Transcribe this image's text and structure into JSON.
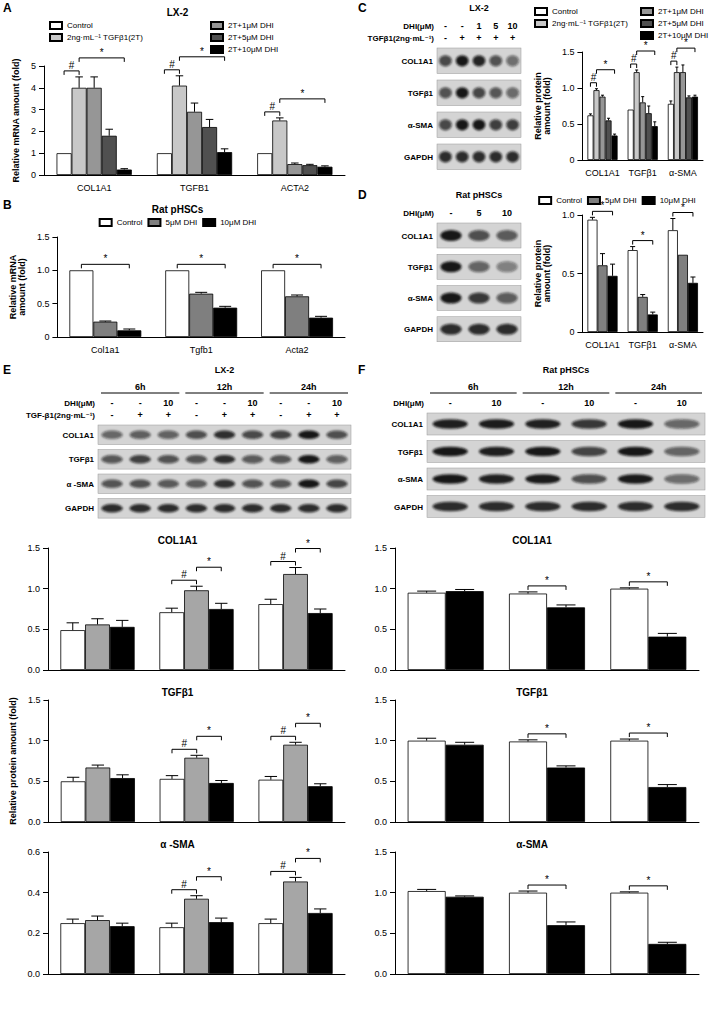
{
  "chart_data": [
    {
      "type": "bar",
      "panel": "A",
      "title": "LX-2",
      "ylabel": "Relative mRNA amount (fold)",
      "legend": "top",
      "categories": [
        "COL1A1",
        "TGFB1",
        "ACTA2"
      ],
      "series": [
        {
          "name": "Control",
          "color": "#ffffff",
          "values": [
            1,
            1,
            1
          ],
          "errors": [
            0,
            0,
            0
          ]
        },
        {
          "name": "2ng·mL⁻¹ TGFβ1(2T)",
          "color": "#c8c8c8",
          "values": [
            4.0,
            4.1,
            2.5
          ],
          "errors": [
            0.5,
            0.45,
            0.12
          ]
        },
        {
          "name": "2T+1μM DHI",
          "color": "#969696",
          "values": [
            4.0,
            2.9,
            0.5
          ],
          "errors": [
            0.5,
            0.4,
            0.05
          ]
        },
        {
          "name": "2T+5μM DHI",
          "color": "#505050",
          "values": [
            1.8,
            2.2,
            0.45
          ],
          "errors": [
            0.3,
            0.35,
            0.04
          ]
        },
        {
          "name": "2T+10μM DHI",
          "color": "#000000",
          "values": [
            0.25,
            1.05,
            0.38
          ],
          "errors": [
            0.04,
            0.15,
            0.04
          ]
        }
      ],
      "annotations": [
        {
          "text": "#",
          "category": 0,
          "from": 0,
          "to": 1
        },
        {
          "text": "*",
          "category": 0,
          "from": 1,
          "to": 4
        },
        {
          "text": "#",
          "category": 1,
          "from": 0,
          "to": 1
        },
        {
          "text": "*",
          "category": 1,
          "from": 1,
          "to": 4
        },
        {
          "text": "#",
          "category": 2,
          "from": 0,
          "to": 1
        },
        {
          "text": "*",
          "category": 2,
          "from": 1,
          "to": 4
        }
      ],
      "ylim": [
        0,
        5
      ],
      "yticks": [
        0,
        1,
        2,
        3,
        4,
        5
      ],
      "grid": false
    },
    {
      "type": "bar",
      "panel": "B",
      "title": "Rat pHSCs",
      "ylabel": "Relative mRNA\namount (fold)",
      "legend": "top",
      "categories": [
        "Col1a1",
        "Tgfb1",
        "Acta2"
      ],
      "series": [
        {
          "name": "Control",
          "color": "#ffffff",
          "values": [
            1,
            1,
            1
          ],
          "errors": [
            0,
            0,
            0
          ]
        },
        {
          "name": "5μM DHI",
          "color": "#7f7f7f",
          "values": [
            0.23,
            0.65,
            0.61
          ],
          "errors": [
            0.01,
            0.02,
            0.02
          ]
        },
        {
          "name": "10μM DHI",
          "color": "#000000",
          "values": [
            0.1,
            0.44,
            0.29
          ],
          "errors": [
            0.02,
            0.02,
            0.02
          ]
        }
      ],
      "annotations": [
        {
          "text": "*",
          "category": 0,
          "from": 0,
          "to": 2
        },
        {
          "text": "*",
          "category": 1,
          "from": 0,
          "to": 2
        },
        {
          "text": "*",
          "category": 2,
          "from": 0,
          "to": 2
        }
      ],
      "ylim": [
        0,
        1.5
      ],
      "yticks": [
        0,
        0.5,
        {
          "value": 1,
          "label": "1.0"
        },
        1.5
      ],
      "grid": false
    },
    {
      "type": "bar",
      "ylabel": "Relative protein\namount (fold)",
      "legend": "top",
      "categories": [
        "COL1A1",
        "TGFβ1",
        "α-SMA"
      ],
      "series": [
        {
          "name": "Control",
          "color": "#ffffff",
          "values": [
            0.62,
            0.7,
            0.78
          ],
          "errors": [
            0.02,
            0,
            0.04
          ]
        },
        {
          "name": "2ng·mL⁻¹ TGFβ1(2T)",
          "color": "#c8c8c8",
          "values": [
            0.97,
            1.22,
            1.22
          ],
          "errors": [
            0.02,
            0.03,
            0.07
          ]
        },
        {
          "name": "2T+1μM DHI",
          "color": "#969696",
          "values": [
            0.88,
            0.8,
            1.22
          ],
          "errors": [
            0.02,
            0.08,
            0.1
          ]
        },
        {
          "name": "2T+5μM DHI",
          "color": "#505050",
          "values": [
            0.55,
            0.65,
            0.87
          ],
          "errors": [
            0.03,
            0.1,
            0.02
          ]
        },
        {
          "name": "2T+10μM DHI",
          "color": "#000000",
          "values": [
            0.34,
            0.47,
            0.88
          ],
          "errors": [
            0.02,
            0.06,
            0.02
          ]
        }
      ],
      "annotations": [
        {
          "text": "#",
          "category": 0,
          "from": 0,
          "to": 1
        },
        {
          "text": "*",
          "category": 0,
          "from": 1,
          "to": 4
        },
        {
          "text": "#",
          "category": 1,
          "from": 0,
          "to": 1
        },
        {
          "text": "*",
          "category": 1,
          "from": 1,
          "to": 4
        },
        {
          "text": "#",
          "category": 2,
          "from": 0,
          "to": 1
        },
        {
          "text": "*",
          "category": 2,
          "from": 1,
          "to": 4
        }
      ],
      "ylim": [
        0,
        1.5
      ],
      "yticks": [
        0,
        0.5,
        {
          "value": 1,
          "label": "1.0"
        },
        1.5
      ],
      "grid": false
    },
    {
      "type": "bar",
      "ylabel": "Relative protein\namount (fold)",
      "legend": "top",
      "categories": [
        "COL1A1",
        "TGFβ1",
        "α-SMA"
      ],
      "series": [
        {
          "name": "Control",
          "color": "#ffffff",
          "values": [
            0.96,
            0.7,
            0.87
          ],
          "errors": [
            0.02,
            0.03,
            0.1
          ]
        },
        {
          "name": "5μM DHI",
          "color": "#7f7f7f",
          "values": [
            0.57,
            0.3,
            0.66
          ],
          "errors": [
            0.1,
            0.02,
            0
          ]
        },
        {
          "name": "10μM DHI",
          "color": "#000000",
          "values": [
            0.48,
            0.15,
            0.42
          ],
          "errors": [
            0.1,
            0.02,
            0.05
          ]
        }
      ],
      "annotations": [
        {
          "text": "*",
          "category": 0,
          "from": 0,
          "to": 2
        },
        {
          "text": "*",
          "category": 1,
          "from": 0,
          "to": 2
        },
        {
          "text": "*",
          "category": 2,
          "from": 0,
          "to": 2
        }
      ],
      "ylim": [
        0,
        1
      ],
      "yticks": [
        0,
        0.5,
        {
          "value": 1,
          "label": "1.0"
        }
      ],
      "grid": false
    },
    {
      "type": "bar",
      "title": "COL1A1",
      "tick_labels": "y",
      "categories": [
        null,
        null,
        null
      ],
      "series": [
        {
          "color": "#ffffff",
          "values": [
            0.49,
            0.71,
            0.81
          ],
          "errors": [
            0.09,
            0.05,
            0.06
          ]
        },
        {
          "color": "#a6a6a6",
          "values": [
            0.56,
            0.98,
            1.18
          ],
          "errors": [
            0.07,
            0.05,
            0.08
          ]
        },
        {
          "color": "#000000",
          "values": [
            0.53,
            0.75,
            0.7
          ],
          "errors": [
            0.08,
            0.07,
            0.05
          ]
        }
      ],
      "annotations": [
        {
          "text": "#",
          "category": 1,
          "from": 0,
          "to": 1
        },
        {
          "text": "*",
          "category": 1,
          "from": 1,
          "to": 2
        },
        {
          "text": "#",
          "category": 2,
          "from": 0,
          "to": 1
        },
        {
          "text": "*",
          "category": 2,
          "from": 1,
          "to": 2
        }
      ],
      "ylim": [
        0,
        1.5
      ],
      "yticks": [
        {
          "value": 0,
          "label": "0.0"
        },
        0.5,
        {
          "value": 1,
          "label": "1.0"
        },
        1.5
      ],
      "grid": false
    },
    {
      "type": "bar",
      "title": "TGFβ1",
      "ylabel": "Relative protein amount (fold)",
      "tick_labels": "y",
      "categories": [
        null,
        null,
        null
      ],
      "series": [
        {
          "color": "#ffffff",
          "values": [
            0.5,
            0.53,
            0.52
          ],
          "errors": [
            0.05,
            0.04,
            0.04
          ]
        },
        {
          "color": "#a6a6a6",
          "values": [
            0.67,
            0.79,
            0.95
          ],
          "errors": [
            0.03,
            0.03,
            0.03
          ]
        },
        {
          "color": "#000000",
          "values": [
            0.54,
            0.48,
            0.44
          ],
          "errors": [
            0.04,
            0.03,
            0.03
          ]
        }
      ],
      "annotations": [
        {
          "text": "#",
          "category": 1,
          "from": 0,
          "to": 1
        },
        {
          "text": "*",
          "category": 1,
          "from": 1,
          "to": 2
        },
        {
          "text": "#",
          "category": 2,
          "from": 0,
          "to": 1
        },
        {
          "text": "*",
          "category": 2,
          "from": 1,
          "to": 2
        }
      ],
      "ylim": [
        0,
        1.5
      ],
      "yticks": [
        {
          "value": 0,
          "label": "0.0"
        },
        0.5,
        {
          "value": 1,
          "label": "1.0"
        },
        1.5
      ],
      "grid": false
    },
    {
      "type": "bar",
      "title": "α -SMA",
      "tick_labels": "y",
      "categories": [
        null,
        null,
        null
      ],
      "series": [
        {
          "color": "#ffffff",
          "values": [
            0.25,
            0.23,
            0.25
          ],
          "errors": [
            0.02,
            0.02,
            0.02
          ]
        },
        {
          "color": "#a6a6a6",
          "values": [
            0.265,
            0.37,
            0.455
          ],
          "errors": [
            0.02,
            0.015,
            0.02
          ]
        },
        {
          "color": "#000000",
          "values": [
            0.235,
            0.255,
            0.3
          ],
          "errors": [
            0.015,
            0.02,
            0.02
          ]
        }
      ],
      "annotations": [
        {
          "text": "#",
          "category": 1,
          "from": 0,
          "to": 1
        },
        {
          "text": "*",
          "category": 1,
          "from": 1,
          "to": 2
        },
        {
          "text": "#",
          "category": 2,
          "from": 0,
          "to": 1
        },
        {
          "text": "*",
          "category": 2,
          "from": 1,
          "to": 2
        }
      ],
      "ylim": [
        0,
        0.6
      ],
      "yticks": [
        {
          "value": 0,
          "label": "0.0"
        },
        0.2,
        0.4,
        0.6
      ],
      "grid": false
    },
    {
      "type": "bar",
      "title": "COL1A1",
      "tick_labels": "y",
      "categories": [
        null,
        null,
        null
      ],
      "series": [
        {
          "color": "#ffffff",
          "values": [
            0.95,
            0.94,
            1.0
          ],
          "errors": [
            0.02,
            0.02,
            0.01
          ]
        },
        {
          "color": "#000000",
          "values": [
            0.97,
            0.77,
            0.41
          ],
          "errors": [
            0.02,
            0.03,
            0.04
          ]
        }
      ],
      "annotations": [
        {
          "text": "*",
          "category": 1,
          "from": 0,
          "to": 1
        },
        {
          "text": "*",
          "category": 2,
          "from": 0,
          "to": 1
        }
      ],
      "ylim": [
        0,
        1.5
      ],
      "yticks": [
        {
          "value": 0,
          "label": "0.0"
        },
        0.5,
        {
          "value": 1,
          "label": "1.0"
        },
        1.5
      ],
      "grid": false
    },
    {
      "type": "bar",
      "title": "TGFβ1",
      "tick_labels": "y",
      "categories": [
        null,
        null,
        null
      ],
      "series": [
        {
          "color": "#ffffff",
          "values": [
            1.0,
            0.99,
            1.0
          ],
          "errors": [
            0.03,
            0.02,
            0.02
          ]
        },
        {
          "color": "#000000",
          "values": [
            0.95,
            0.67,
            0.43
          ],
          "errors": [
            0.03,
            0.02,
            0.03
          ]
        }
      ],
      "annotations": [
        {
          "text": "*",
          "category": 1,
          "from": 0,
          "to": 1
        },
        {
          "text": "*",
          "category": 2,
          "from": 0,
          "to": 1
        }
      ],
      "ylim": [
        0,
        1.5
      ],
      "yticks": [
        {
          "value": 0,
          "label": "0.0"
        },
        0.5,
        {
          "value": 1,
          "label": "1.0"
        },
        1.5
      ],
      "grid": false
    },
    {
      "type": "bar",
      "title": "α-SMA",
      "tick_labels": "y",
      "categories": [
        null,
        null,
        null
      ],
      "series": [
        {
          "color": "#ffffff",
          "values": [
            1.02,
            1.0,
            1.0
          ],
          "errors": [
            0.02,
            0.02,
            0.01
          ]
        },
        {
          "color": "#000000",
          "values": [
            0.95,
            0.6,
            0.37
          ],
          "errors": [
            0.01,
            0.04,
            0.02
          ]
        }
      ],
      "annotations": [
        {
          "text": "*",
          "category": 1,
          "from": 0,
          "to": 1
        },
        {
          "text": "*",
          "category": 2,
          "from": 0,
          "to": 1
        }
      ],
      "ylim": [
        0,
        1.5
      ],
      "yticks": [
        {
          "value": 0,
          "label": "0.0"
        },
        0.5,
        {
          "value": 1,
          "label": "1.0"
        },
        1.5
      ],
      "grid": false
    }
  ],
  "blots": [
    {
      "panel": "C",
      "title": "LX-2",
      "headers": [
        {
          "label": "DHI(μM)",
          "values": [
            "-",
            "-",
            "1",
            "5",
            "10"
          ]
        },
        {
          "label": "TGFβ1(2ng·mL⁻¹)",
          "values": [
            "-",
            "+",
            "+",
            "+",
            "+"
          ]
        }
      ],
      "rows": [
        "COL1A1",
        "TGFβ1",
        "α-SMA",
        "GAPDH"
      ]
    },
    {
      "panel": "D",
      "title": "Rat pHSCs",
      "headers": [
        {
          "label": "DHI(μM)",
          "values": [
            "-",
            "5",
            "10"
          ]
        }
      ],
      "rows": [
        "COL1A1",
        "TGFβ1",
        "α-SMA",
        "GAPDH"
      ]
    },
    {
      "panel": "E",
      "title": "LX-2",
      "groups": [
        "6h",
        "12h",
        "24h"
      ],
      "headers": [
        {
          "label": "DHI(μM)",
          "values": [
            "-",
            "-",
            "10",
            "-",
            "-",
            "10",
            "-",
            "-",
            "10"
          ]
        },
        {
          "label": "TGF-β1(2ng·mL⁻¹)",
          "values": [
            "-",
            "+",
            "+",
            "-",
            "+",
            "+",
            "-",
            "+",
            "+"
          ]
        }
      ],
      "rows": [
        "COL1A1",
        "TGFβ1",
        "α -SMA",
        "GAPDH"
      ]
    },
    {
      "panel": "F",
      "title": "Rat pHSCs",
      "groups": [
        "6h",
        "12h",
        "24h"
      ],
      "headers": [
        {
          "label": "DHI(μM)",
          "values": [
            "-",
            "10",
            "-",
            "10",
            "-",
            "10"
          ]
        }
      ],
      "rows": [
        "COL1A1",
        "TGFβ1",
        "α-SMA",
        "GAPDH"
      ]
    }
  ]
}
